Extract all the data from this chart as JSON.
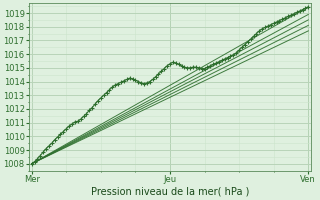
{
  "title": "",
  "xlabel": "Pression niveau de la mer( hPa )",
  "bg_color": "#dff0df",
  "grid_major_color": "#b8d4b8",
  "grid_minor_color": "#cce5cc",
  "line_color": "#2d6e2d",
  "ylim": [
    1007.5,
    1019.7
  ],
  "yticks": [
    1008,
    1009,
    1010,
    1011,
    1012,
    1013,
    1014,
    1015,
    1016,
    1017,
    1018,
    1019
  ],
  "xtick_labels": [
    "Mer",
    "Jeu",
    "Ven"
  ],
  "xtick_positions": [
    0,
    48,
    96
  ],
  "total_points": 97,
  "main_data": [
    1008.0,
    1008.15,
    1008.35,
    1008.6,
    1008.85,
    1009.1,
    1009.3,
    1009.5,
    1009.75,
    1009.95,
    1010.15,
    1010.35,
    1010.55,
    1010.75,
    1010.9,
    1011.05,
    1011.1,
    1011.25,
    1011.45,
    1011.65,
    1011.9,
    1012.1,
    1012.35,
    1012.6,
    1012.8,
    1013.0,
    1013.2,
    1013.4,
    1013.6,
    1013.75,
    1013.85,
    1013.95,
    1014.05,
    1014.15,
    1014.25,
    1014.2,
    1014.1,
    1014.0,
    1013.9,
    1013.85,
    1013.9,
    1014.0,
    1014.15,
    1014.35,
    1014.55,
    1014.75,
    1014.95,
    1015.15,
    1015.3,
    1015.4,
    1015.35,
    1015.25,
    1015.15,
    1015.05,
    1015.0,
    1015.0,
    1015.05,
    1015.05,
    1015.0,
    1014.95,
    1014.95,
    1015.05,
    1015.15,
    1015.25,
    1015.35,
    1015.45,
    1015.55,
    1015.65,
    1015.75,
    1015.85,
    1015.95,
    1016.1,
    1016.3,
    1016.5,
    1016.7,
    1016.9,
    1017.1,
    1017.3,
    1017.5,
    1017.7,
    1017.85,
    1017.95,
    1018.05,
    1018.15,
    1018.25,
    1018.35,
    1018.45,
    1018.55,
    1018.65,
    1018.75,
    1018.85,
    1018.95,
    1019.05,
    1019.15,
    1019.25,
    1019.35,
    1019.45
  ],
  "smooth_lines": [
    {
      "x0": 0,
      "y0": 1008.0,
      "x1": 96,
      "y1": 1019.45
    },
    {
      "x0": 0,
      "y0": 1008.0,
      "x1": 96,
      "y1": 1018.9
    },
    {
      "x0": 0,
      "y0": 1008.0,
      "x1": 96,
      "y1": 1018.5
    },
    {
      "x0": 0,
      "y0": 1008.0,
      "x1": 96,
      "y1": 1018.1
    },
    {
      "x0": 0,
      "y0": 1008.0,
      "x1": 96,
      "y1": 1017.7
    }
  ]
}
